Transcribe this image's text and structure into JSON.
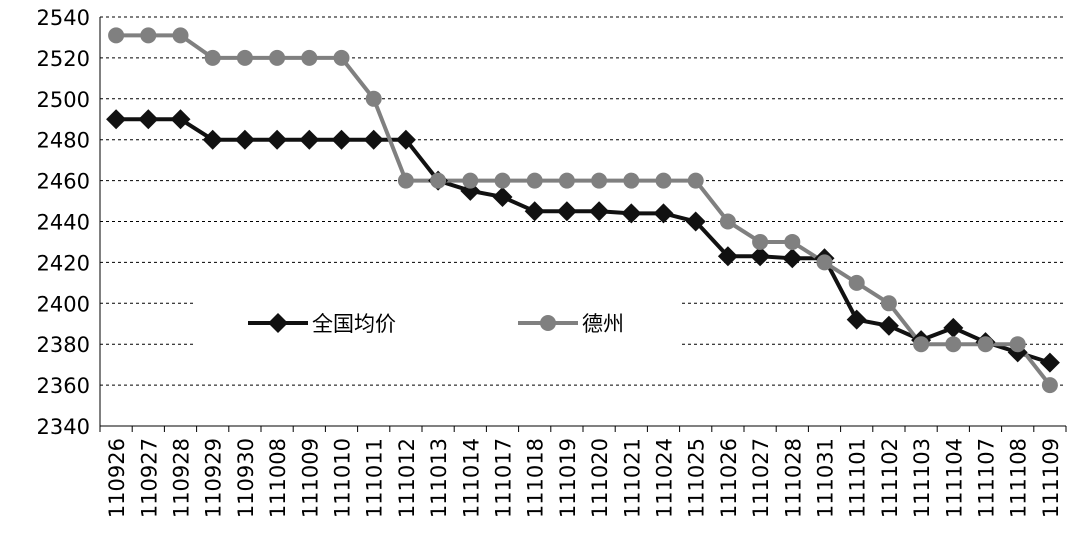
{
  "chart_data": {
    "type": "line",
    "categories": [
      "110926",
      "110927",
      "110928",
      "110929",
      "110930",
      "111008",
      "111009",
      "111010",
      "111011",
      "111012",
      "111013",
      "111014",
      "111017",
      "111018",
      "111019",
      "111020",
      "111021",
      "111024",
      "111025",
      "111026",
      "111027",
      "111028",
      "111031",
      "111101",
      "111102",
      "111103",
      "111104",
      "111107",
      "111108",
      "111109"
    ],
    "series": [
      {
        "name": "全国均价",
        "color": "#111111",
        "marker": "diamond",
        "values": [
          2490,
          2490,
          2490,
          2480,
          2480,
          2480,
          2480,
          2480,
          2480,
          2480,
          2460,
          2455,
          2452,
          2445,
          2445,
          2445,
          2444,
          2444,
          2440,
          2423,
          2423,
          2422,
          2422,
          2392,
          2389,
          2382,
          2388,
          2381,
          2376,
          2371
        ]
      },
      {
        "name": "德州",
        "color": "#808080",
        "marker": "circle",
        "values": [
          2531,
          2531,
          2531,
          2520,
          2520,
          2520,
          2520,
          2520,
          2500,
          2460,
          2460,
          2460,
          2460,
          2460,
          2460,
          2460,
          2460,
          2460,
          2460,
          2440,
          2430,
          2430,
          2420,
          2410,
          2400,
          2380,
          2380,
          2380,
          2380,
          2360
        ]
      }
    ],
    "ylim": [
      2340,
      2540
    ],
    "yticks": [
      2340,
      2360,
      2380,
      2400,
      2420,
      2440,
      2460,
      2480,
      2500,
      2520,
      2540
    ],
    "grid": true
  }
}
